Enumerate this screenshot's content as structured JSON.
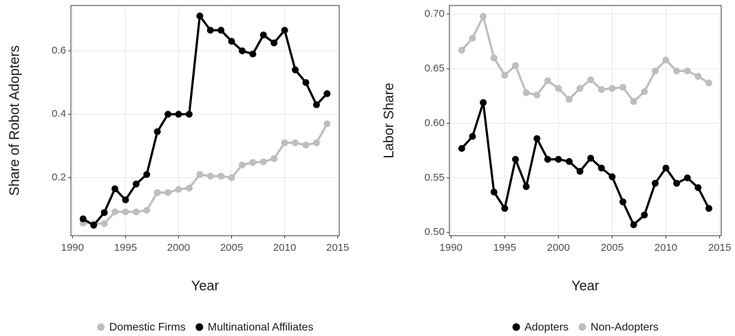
{
  "chart_data": [
    {
      "type": "line",
      "y_label": "Share of Robot Adopters",
      "x_label": "Year",
      "x": [
        1991,
        1992,
        1993,
        1994,
        1995,
        1996,
        1997,
        1998,
        1999,
        2000,
        2001,
        2002,
        2003,
        2004,
        2005,
        2006,
        2007,
        2008,
        2009,
        2010,
        2011,
        2012,
        2013,
        2014
      ],
      "series": [
        {
          "name": "Domestic Firms",
          "color": "#bebebe",
          "values": [
            0.057,
            0.055,
            0.055,
            0.092,
            0.092,
            0.092,
            0.097,
            0.153,
            0.153,
            0.163,
            0.167,
            0.21,
            0.205,
            0.205,
            0.2,
            0.24,
            0.248,
            0.25,
            0.26,
            0.31,
            0.31,
            0.303,
            0.31,
            0.37
          ]
        },
        {
          "name": "Multinational Affiliates",
          "color": "#000000",
          "values": [
            0.07,
            0.05,
            0.09,
            0.165,
            0.13,
            0.18,
            0.21,
            0.345,
            0.4,
            0.4,
            0.4,
            0.71,
            0.665,
            0.665,
            0.63,
            0.6,
            0.59,
            0.65,
            0.625,
            0.665,
            0.54,
            0.5,
            0.43,
            0.465
          ]
        }
      ],
      "xlim": [
        1989.85,
        2015.15
      ],
      "ylim": [
        0.017,
        0.743
      ],
      "xticks": [
        1990,
        1995,
        2000,
        2005,
        2010,
        2015
      ],
      "yticks": [
        0.2,
        0.4,
        0.6
      ],
      "grid": true,
      "legend": "bottom"
    },
    {
      "type": "line",
      "y_label": "Labor Share",
      "x_label": "Year",
      "x": [
        1991,
        1992,
        1993,
        1994,
        1995,
        1996,
        1997,
        1998,
        1999,
        2000,
        2001,
        2002,
        2003,
        2004,
        2005,
        2006,
        2007,
        2008,
        2009,
        2010,
        2011,
        2012,
        2013,
        2014
      ],
      "series": [
        {
          "name": "Adopters",
          "color": "#000000",
          "values": [
            0.577,
            0.588,
            0.619,
            0.537,
            0.522,
            0.567,
            0.542,
            0.586,
            0.567,
            0.567,
            0.565,
            0.556,
            0.568,
            0.559,
            0.551,
            0.528,
            0.507,
            0.516,
            0.545,
            0.559,
            0.545,
            0.55,
            0.541,
            0.522
          ]
        },
        {
          "name": "Non-Adopters",
          "color": "#bebebe",
          "values": [
            0.667,
            0.678,
            0.698,
            0.66,
            0.644,
            0.653,
            0.628,
            0.626,
            0.639,
            0.632,
            0.622,
            0.632,
            0.64,
            0.631,
            0.632,
            0.633,
            0.62,
            0.629,
            0.648,
            0.658,
            0.648,
            0.648,
            0.643,
            0.637
          ]
        }
      ],
      "xlim": [
        1989.85,
        2015.15
      ],
      "ylim": [
        0.497,
        0.708
      ],
      "xticks": [
        1990,
        1995,
        2000,
        2005,
        2010,
        2015
      ],
      "yticks": [
        {
          "value": 0.5,
          "label": "0.50"
        },
        0.55,
        {
          "value": 0.6,
          "label": "0.60"
        },
        0.65,
        {
          "value": 0.7,
          "label": "0.70"
        }
      ],
      "grid": true,
      "legend": "bottom"
    }
  ]
}
